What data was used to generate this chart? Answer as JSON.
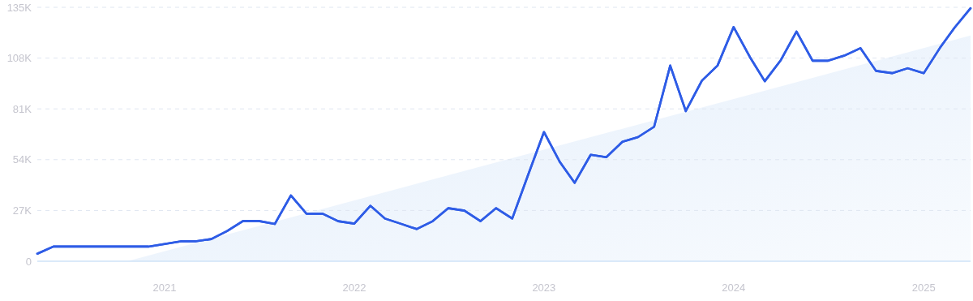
{
  "chart_data": {
    "type": "line",
    "x": [
      "2020-05",
      "2020-06",
      "2020-07",
      "2020-08",
      "2020-09",
      "2020-10",
      "2020-11",
      "2020-12",
      "2021-01",
      "2021-02",
      "2021-03",
      "2021-04",
      "2021-05",
      "2021-06",
      "2021-07",
      "2021-08",
      "2021-09",
      "2021-10",
      "2021-11",
      "2021-12",
      "2022-01",
      "2022-02",
      "2022-03",
      "2022-04",
      "2022-05",
      "2022-06",
      "2022-07",
      "2022-08",
      "2022-09",
      "2022-10",
      "2022-11",
      "2022-12",
      "2023-01",
      "2023-02",
      "2023-03",
      "2023-04",
      "2023-05",
      "2023-06",
      "2023-07",
      "2023-08",
      "2023-09",
      "2023-10",
      "2023-11",
      "2023-12",
      "2024-01",
      "2024-02",
      "2024-03",
      "2024-04",
      "2024-05",
      "2024-06",
      "2024-07",
      "2024-08",
      "2024-09",
      "2024-10",
      "2024-11",
      "2024-12",
      "2025-01",
      "2025-02",
      "2025-03",
      "2025-04"
    ],
    "series": [
      {
        "type": "area",
        "color": "#e3eefb",
        "x": [
          "2020-10-21",
          "2025-04"
        ],
        "values": [
          0,
          120000
        ]
      },
      {
        "color": "#2e5ce6",
        "values": [
          4000,
          7800,
          7800,
          7800,
          7800,
          7800,
          7800,
          7800,
          9200,
          10600,
          10600,
          11800,
          16000,
          21400,
          21400,
          19800,
          35000,
          25300,
          25300,
          21300,
          20000,
          29500,
          22700,
          19900,
          17100,
          21300,
          28200,
          26900,
          21300,
          28200,
          22700,
          45500,
          68700,
          52600,
          41700,
          56600,
          55300,
          63500,
          66000,
          71500,
          104000,
          79800,
          96000,
          104000,
          124500,
          108700,
          95700,
          107000,
          122100,
          106600,
          106600,
          109300,
          113300,
          101200,
          100000,
          102600,
          100000,
          113400,
          124100,
          134500
        ]
      }
    ],
    "xlim": [
      "2020-05",
      "2025-04"
    ],
    "xticks": [
      "2021",
      "2022",
      "2023",
      "2024",
      "2025"
    ],
    "ylim": [
      0,
      135000
    ],
    "yticks": [
      {
        "value": 0,
        "label": "0"
      },
      {
        "value": 27000,
        "label": "27K"
      },
      {
        "value": 54000,
        "label": "54K"
      },
      {
        "value": 81000,
        "label": "81K"
      },
      {
        "value": 108000,
        "label": "108K"
      },
      {
        "value": 135000,
        "label": "135K"
      }
    ],
    "grid": "y",
    "marker": "none",
    "line_style": "solid"
  }
}
